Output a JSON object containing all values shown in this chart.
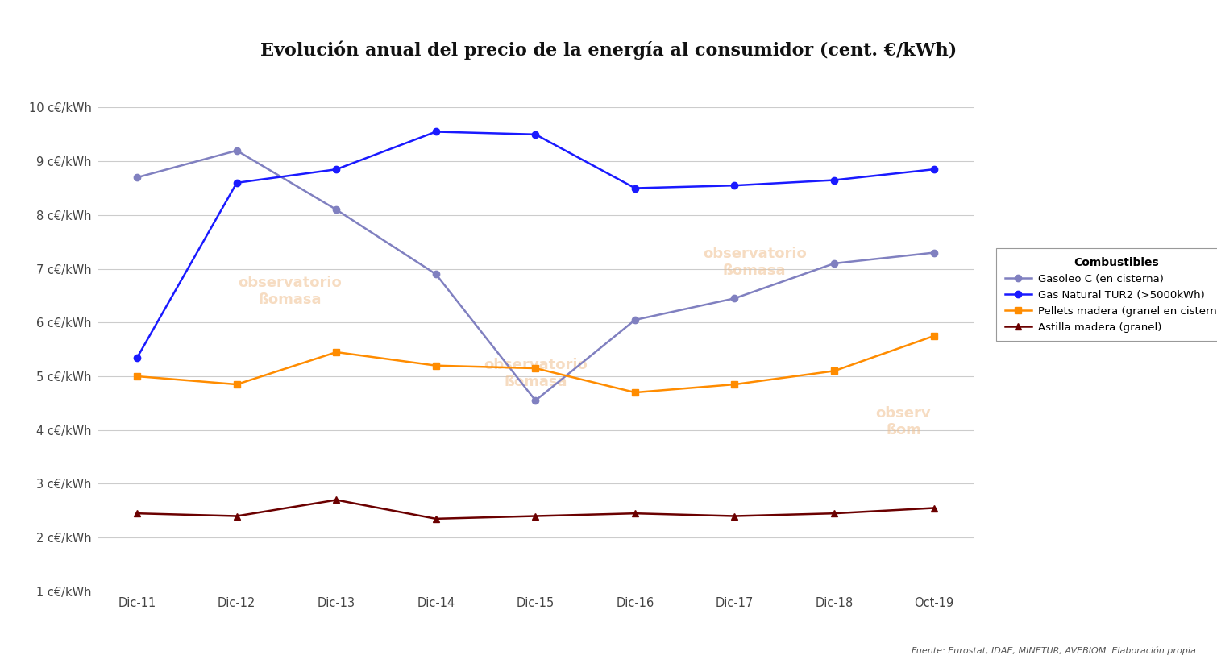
{
  "title": "Evolución anual del precio de la energía al consumidor (cent. €/kWh)",
  "x_labels": [
    "Dic-11",
    "Dic-12",
    "Dic-13",
    "Dic-14",
    "Dic-15",
    "Dic-16",
    "Dic-17",
    "Dic-18",
    "Oct-19"
  ],
  "gasoleo": [
    8.7,
    9.2,
    8.1,
    6.9,
    4.55,
    6.05,
    6.45,
    7.1,
    7.3
  ],
  "gas_natural": [
    5.35,
    8.6,
    8.85,
    9.55,
    9.5,
    8.5,
    8.55,
    8.65,
    8.85
  ],
  "pellets": [
    5.0,
    4.85,
    5.45,
    5.2,
    5.15,
    4.7,
    4.85,
    5.1,
    5.75
  ],
  "astilla": [
    2.45,
    2.4,
    2.7,
    2.35,
    2.4,
    2.45,
    2.4,
    2.45,
    2.55
  ],
  "gasoleo_color": "#8080c0",
  "gas_natural_color": "#1a1aff",
  "pellets_color": "#ff8c00",
  "astilla_color": "#6b0000",
  "ylim": [
    1,
    10
  ],
  "yticks": [
    1,
    2,
    3,
    4,
    5,
    6,
    7,
    8,
    9,
    10
  ],
  "ylabel_format": "{} c€/kWh",
  "legend_title": "Combustibles",
  "legend_labels": [
    "Gasoleo C (en cisterna)",
    "Gas Natural TUR2 (>5000kWh)",
    "Pellets madera (granel en cisterna)",
    "Astilla madera (granel)"
  ],
  "footnote": "Fuente: Eurostat, IDAE, MINETUR, AVEBIOM. Elaboración propia.",
  "bg_color": "#ffffff",
  "grid_color": "#cccccc"
}
